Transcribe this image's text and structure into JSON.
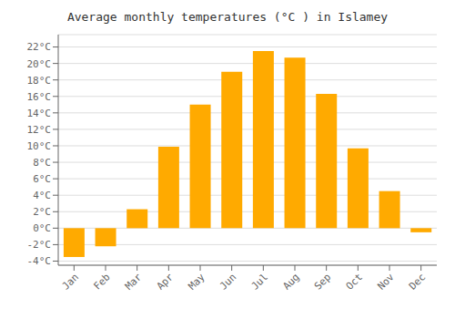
{
  "chart_data": {
    "type": "bar",
    "title": "Average monthly temperatures (°C ) in Islamey",
    "categories": [
      "Jan",
      "Feb",
      "Mar",
      "Apr",
      "May",
      "Jun",
      "Jul",
      "Aug",
      "Sep",
      "Oct",
      "Nov",
      "Dec"
    ],
    "values": [
      -3.5,
      -2.2,
      2.3,
      9.9,
      15.0,
      19.0,
      21.5,
      20.7,
      16.3,
      9.7,
      4.5,
      -0.5
    ],
    "color": "#FFAA00",
    "ylim": [
      -4.5,
      23.5
    ],
    "yticks": [
      {
        "value": -4,
        "label": "-4°C"
      },
      {
        "value": -2,
        "label": "-2°C"
      },
      {
        "value": 0,
        "label": "0°C"
      },
      {
        "value": 2,
        "label": "2°C"
      },
      {
        "value": 4,
        "label": "4°C"
      },
      {
        "value": 6,
        "label": "6°C"
      },
      {
        "value": 8,
        "label": "8°C"
      },
      {
        "value": 10,
        "label": "10°C"
      },
      {
        "value": 12,
        "label": "12°C"
      },
      {
        "value": 14,
        "label": "14°C"
      },
      {
        "value": 16,
        "label": "16°C"
      },
      {
        "value": 18,
        "label": "18°C"
      },
      {
        "value": 20,
        "label": "20°C"
      },
      {
        "value": 22,
        "label": "22°C"
      }
    ],
    "grid": true
  }
}
